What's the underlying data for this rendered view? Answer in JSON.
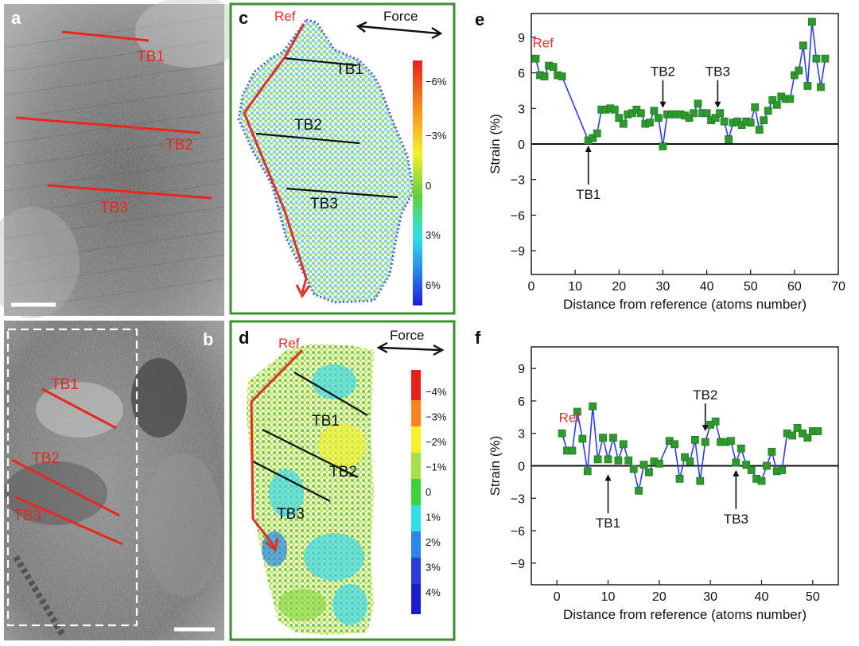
{
  "panels": {
    "a": {
      "label": "a",
      "boundaries": [
        "TB1",
        "TB2",
        "TB3"
      ]
    },
    "b": {
      "label": "b",
      "boundaries": [
        "TB1",
        "TB2",
        "TB3"
      ]
    },
    "c": {
      "label": "c",
      "ref": "Ref",
      "force": "Force",
      "boundaries": [
        "TB1",
        "TB2",
        "TB3"
      ],
      "colorbar": [
        "−6%",
        "−3%",
        "0",
        "3%",
        "6%"
      ]
    },
    "d": {
      "label": "d",
      "ref": "Ref",
      "force": "Force",
      "boundaries": [
        "TB1",
        "TB2",
        "TB3"
      ],
      "colorbar": [
        "−4%",
        "−3%",
        "−2%",
        "−1%",
        "0",
        "1%",
        "2%",
        "3%",
        "4%"
      ]
    },
    "e": {
      "label": "e"
    },
    "f": {
      "label": "f"
    }
  },
  "colors": {
    "tb_line": "#e8281c",
    "arrow": "#e0302a",
    "frame": "#3a8f2e",
    "series_line": "#2b3df0",
    "marker": "#2e9a2e"
  },
  "chart_data": [
    {
      "panel": "e",
      "type": "line",
      "title": "",
      "xlabel": "Distance from reference (atoms number)",
      "ylabel": "Strain (%)",
      "xlim": [
        0,
        70
      ],
      "ylim": [
        -11,
        11
      ],
      "xticks": [
        0,
        10,
        20,
        30,
        40,
        50,
        60,
        70
      ],
      "yticks": [
        9,
        6,
        3,
        0,
        -3,
        -6,
        -9
      ],
      "ref_label": "Ref",
      "annotations": [
        {
          "text": "TB1",
          "x": 13,
          "y": 0.4,
          "dir": "up"
        },
        {
          "text": "TB2",
          "x": 30,
          "y": 2.5,
          "dir": "down"
        },
        {
          "text": "TB3",
          "x": 42.5,
          "y": 2.5,
          "dir": "down"
        }
      ],
      "series": [
        {
          "name": "strain",
          "x": [
            1,
            2,
            3,
            4,
            5,
            6,
            7,
            13,
            14,
            15,
            16,
            17,
            18,
            19,
            20,
            21,
            22,
            23,
            24,
            25,
            26,
            27,
            28,
            29,
            30,
            31,
            32,
            33,
            34,
            35,
            36,
            37,
            38,
            39,
            40,
            41,
            42,
            43,
            44,
            45,
            46,
            47,
            48,
            49,
            50,
            51,
            52,
            53,
            54,
            55,
            56,
            57,
            58,
            59,
            60,
            61,
            62,
            63,
            64,
            65,
            66,
            67
          ],
          "y": [
            7.2,
            5.8,
            5.7,
            6.6,
            6.5,
            5.8,
            5.7,
            0.3,
            0.5,
            0.9,
            2.9,
            2.9,
            3.0,
            2.9,
            2.2,
            1.7,
            2.5,
            2.6,
            2.9,
            2.6,
            1.7,
            1.8,
            2.8,
            2.2,
            -0.2,
            2.5,
            2.5,
            2.5,
            2.5,
            2.4,
            2.2,
            2.6,
            3.4,
            2.6,
            2.6,
            2.0,
            2.2,
            2.6,
            1.9,
            0.4,
            1.8,
            1.9,
            1.6,
            1.9,
            1.8,
            3.1,
            1.2,
            2.0,
            2.8,
            3.7,
            3.3,
            4.0,
            3.8,
            3.8,
            5.8,
            6.2,
            8.3,
            4.9,
            10.3,
            7.2,
            4.8,
            7.2
          ]
        }
      ]
    },
    {
      "panel": "f",
      "type": "line",
      "title": "",
      "xlabel": "Distance from reference (atoms number)",
      "ylabel": "Strain (%)",
      "xlim": [
        -5,
        55
      ],
      "ylim": [
        -11,
        11
      ],
      "xticks": [
        0,
        10,
        20,
        30,
        40,
        50
      ],
      "yticks": [
        9,
        6,
        3,
        0,
        -3,
        -6,
        -9
      ],
      "ref_label": "Ref",
      "annotations": [
        {
          "text": "TB1",
          "x": 10,
          "y": -0.2,
          "dir": "up"
        },
        {
          "text": "TB2",
          "x": 29,
          "y": 2.6,
          "dir": "down"
        },
        {
          "text": "TB3",
          "x": 35,
          "y": 0.2,
          "dir": "up"
        }
      ],
      "series": [
        {
          "name": "strain",
          "x": [
            1,
            2,
            3,
            4,
            5,
            6,
            7,
            8,
            9,
            10,
            11,
            12,
            13,
            14,
            15,
            16,
            17,
            18,
            19,
            20,
            22,
            23,
            24,
            25,
            26,
            27,
            28,
            29,
            30,
            31,
            32,
            33,
            34,
            35,
            36,
            37,
            38,
            39,
            40,
            41,
            42,
            43,
            44,
            45,
            46,
            47,
            48,
            49,
            50,
            51
          ],
          "y": [
            3.0,
            1.4,
            1.4,
            5.0,
            2.5,
            -0.5,
            5.5,
            0.6,
            2.6,
            0.6,
            2.6,
            0.5,
            2.0,
            0.5,
            -0.3,
            -2.3,
            0.1,
            -0.6,
            0.4,
            0.2,
            2.3,
            2.0,
            -1.2,
            0.8,
            0.4,
            2.4,
            -1.4,
            2.2,
            3.8,
            4.1,
            2.2,
            2.2,
            2.3,
            0.3,
            1.6,
            0.1,
            -0.4,
            -1.2,
            -1.4,
            0.0,
            1.3,
            -0.5,
            -0.4,
            3.0,
            2.8,
            3.5,
            3.0,
            2.6,
            3.2,
            3.2
          ]
        }
      ]
    }
  ]
}
